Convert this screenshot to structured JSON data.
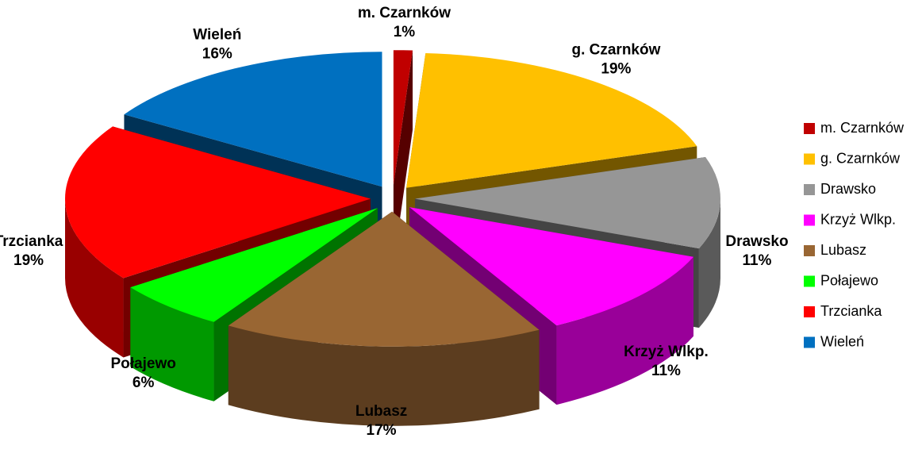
{
  "chart_data": {
    "type": "pie",
    "categories": [
      "m. Czarnków",
      "g. Czarnków",
      "Drawsko",
      "Krzyż Wlkp.",
      "Lubasz",
      "Połajewo",
      "Trzcianka",
      "Wieleń"
    ],
    "values": [
      1,
      19,
      11,
      11,
      17,
      6,
      19,
      16
    ],
    "value_labels": [
      "1%",
      "19%",
      "11%",
      "11%",
      "17%",
      "6%",
      "19%",
      "16%"
    ],
    "colors": [
      "#c00000",
      "#ffc000",
      "#969696",
      "#ff00ff",
      "#996633",
      "#00ff00",
      "#ff0000",
      "#0070c0"
    ],
    "legend": "right"
  }
}
